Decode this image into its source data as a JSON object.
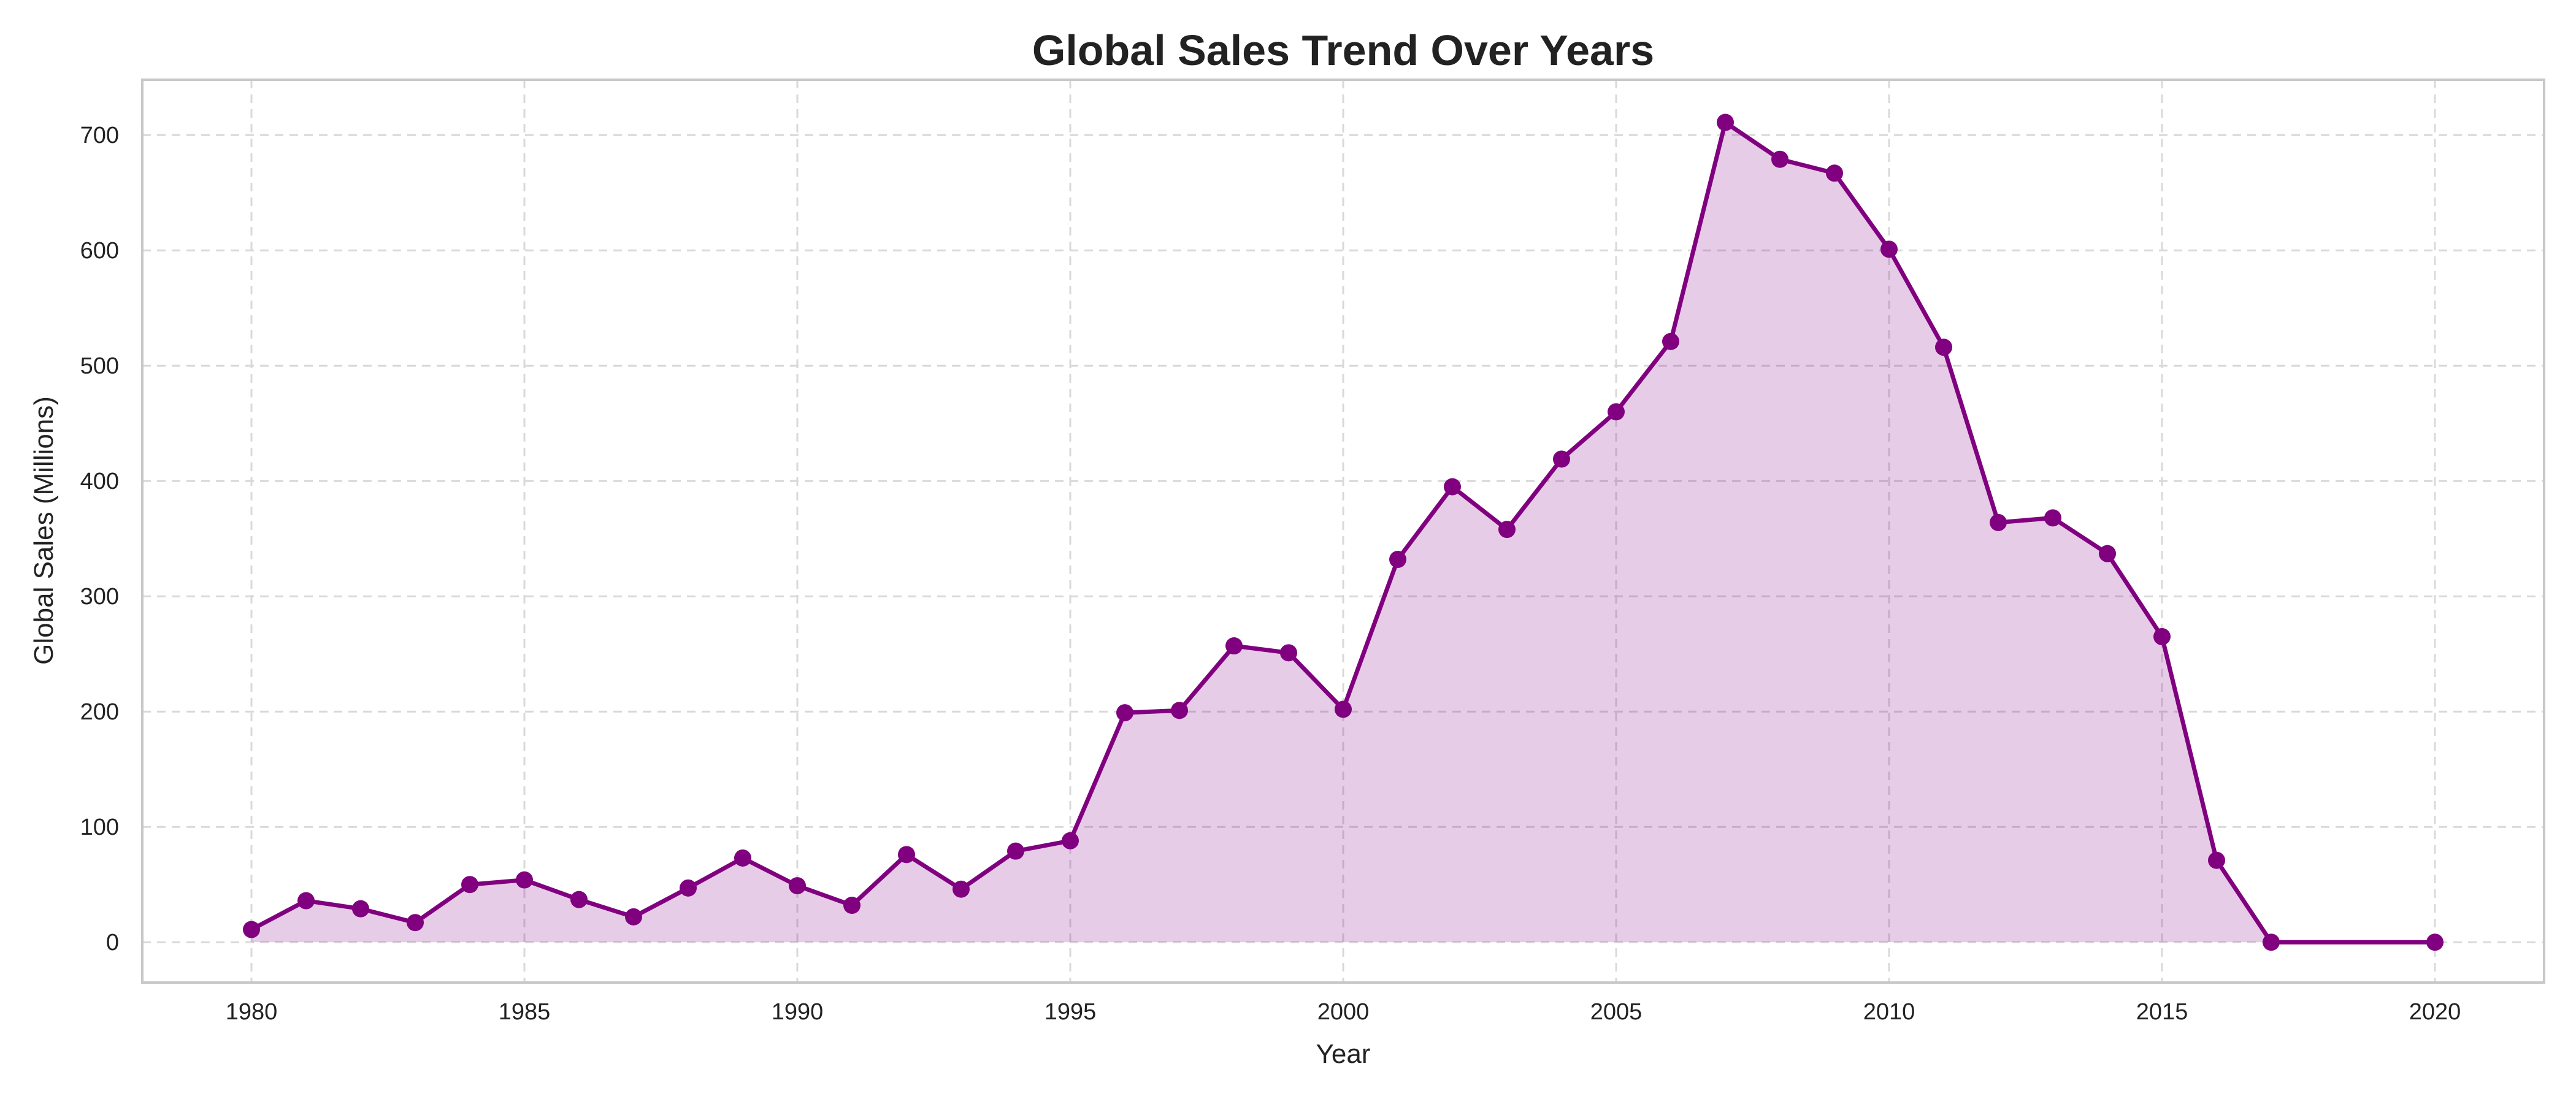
{
  "chart_data": {
    "type": "area",
    "title": "Global Sales Trend Over Years",
    "xlabel": "Year",
    "ylabel": "Global Sales (Millions)",
    "xlim": [
      1978,
      2022
    ],
    "ylim": [
      -35,
      748
    ],
    "xticks": [
      1980,
      1985,
      1990,
      1995,
      2000,
      2005,
      2010,
      2015,
      2020
    ],
    "yticks": [
      0,
      100,
      200,
      300,
      400,
      500,
      600,
      700
    ],
    "grid": true,
    "legend": "none",
    "colors": {
      "line": "#800080",
      "fill": "#800080",
      "fill_opacity": 0.2
    },
    "series": [
      {
        "x": [
          1980,
          1981,
          1982,
          1983,
          1984,
          1985,
          1986,
          1987,
          1988,
          1989,
          1990,
          1991,
          1992,
          1993,
          1994,
          1995,
          1996,
          1997,
          1998,
          1999,
          2000,
          2001,
          2002,
          2003,
          2004,
          2005,
          2006,
          2007,
          2008,
          2009,
          2010,
          2011,
          2012,
          2013,
          2014,
          2015,
          2016,
          2017,
          2020
        ],
        "values": [
          11,
          36,
          29,
          17,
          50,
          54,
          37,
          22,
          47,
          73,
          49,
          32,
          76,
          46,
          79,
          88,
          199,
          201,
          257,
          251,
          202,
          332,
          395,
          358,
          419,
          460,
          521,
          711,
          679,
          667,
          601,
          516,
          364,
          368,
          337,
          265,
          71,
          0,
          0
        ]
      }
    ]
  }
}
